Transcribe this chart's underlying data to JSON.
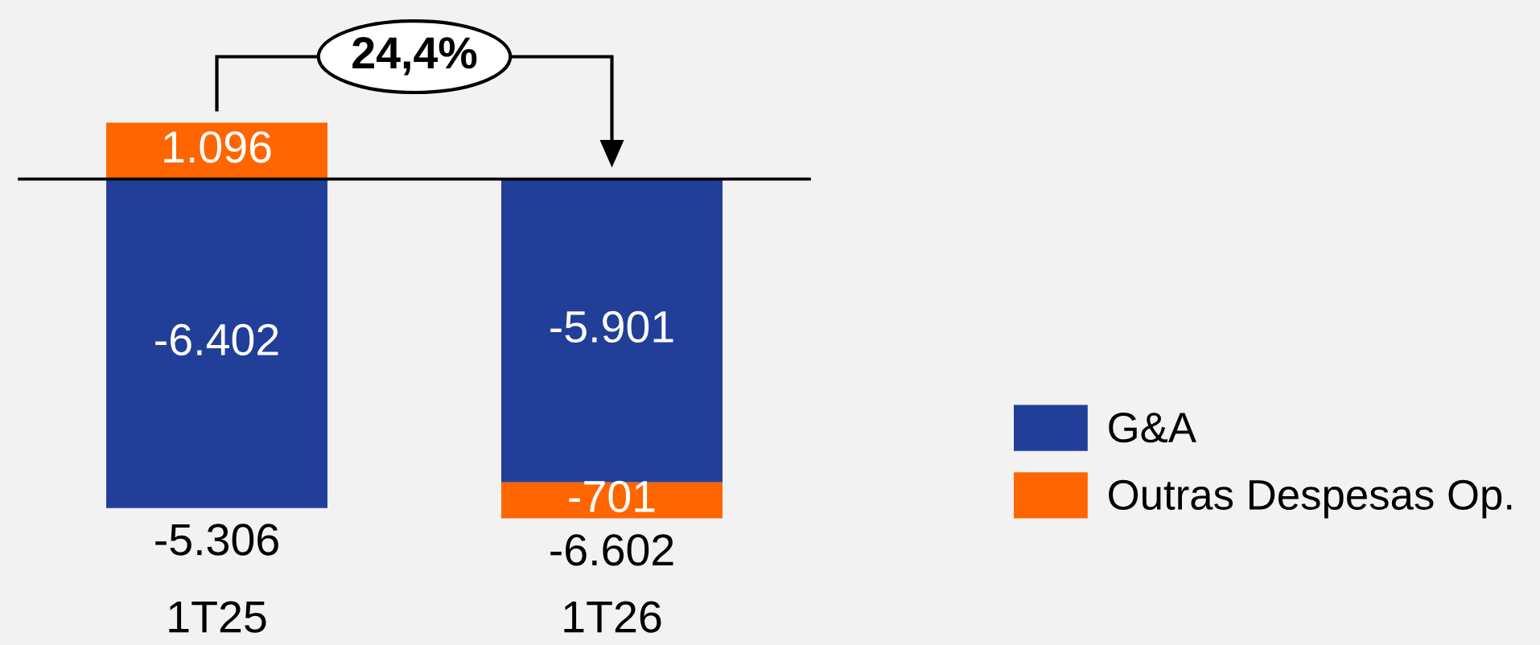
{
  "chart_data": {
    "type": "bar",
    "categories": [
      "1T25",
      "1T26"
    ],
    "stacked": true,
    "series": [
      {
        "name": "G&A",
        "color": "#213f99",
        "values": [
          -6402,
          -5901
        ],
        "value_labels": [
          "-6.402",
          "-5.901"
        ]
      },
      {
        "name": "Outras Despesas Op.",
        "color": "#ff6600",
        "values": [
          1096,
          -701
        ],
        "value_labels": [
          "1.096",
          "-701"
        ]
      }
    ],
    "totals": [
      "-5.306",
      "-6.602"
    ],
    "annotations": [
      "24,4%"
    ],
    "legend": "right"
  }
}
